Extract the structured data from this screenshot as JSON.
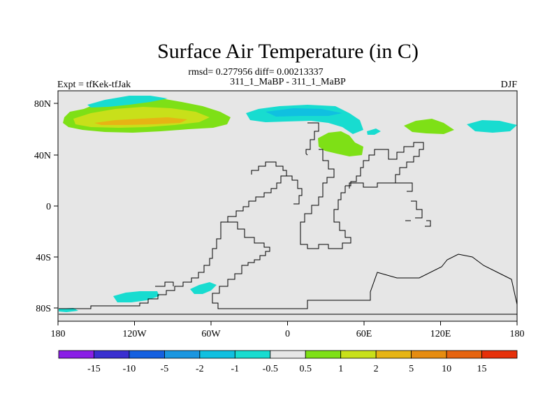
{
  "title": "Surface Air Temperature (in C)",
  "stats_line": "rmsd= 0.277956 diff= 0.00213337",
  "center_label": "311_1_MaBP - 311_1_MaBP",
  "left_label": "Expt = tfKek-tfJak",
  "right_label": "DJF",
  "x_ticks": [
    "180",
    "120W",
    "60W",
    "0",
    "60E",
    "120E",
    "180"
  ],
  "y_ticks": [
    "80N",
    "40N",
    "0",
    "40S",
    "80S"
  ],
  "colorbar": {
    "colors": [
      "#8a1fe6",
      "#3a2fd0",
      "#1560e0",
      "#1a96e0",
      "#10c0e0",
      "#18dcd0",
      "#e6e6e6",
      "#7ee016",
      "#c8e01a",
      "#e6b414",
      "#e68c10",
      "#e66410",
      "#e6300a"
    ],
    "labels": [
      "-15",
      "-10",
      "-5",
      "-2",
      "-1",
      "-0.5",
      "0.5",
      "1",
      "2",
      "5",
      "10",
      "15"
    ]
  },
  "colors": {
    "background": "#e6e6e6",
    "coastline": "#000000"
  }
}
